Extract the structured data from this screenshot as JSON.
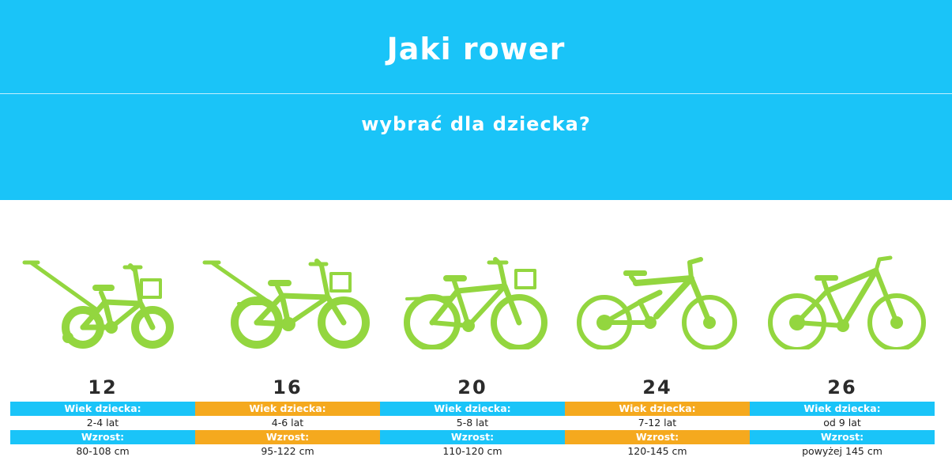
{
  "header": {
    "title": "Jaki rower",
    "subtitle": "wybrać dla dziecka?"
  },
  "colors": {
    "hero_bg": "#1ac4f8",
    "bike_green": "#93d63f",
    "label_blue": "#1ac4f8",
    "label_orange": "#f5a91e"
  },
  "bikes": [
    {
      "icon": "kids-bike-push-handle-icon",
      "size": "12",
      "age_label": "Wiek dziecka:",
      "age_value": "2-4 lat",
      "height_label": "Wzrost:",
      "height_value": "80-108 cm",
      "label_color": "#1ac4f8"
    },
    {
      "icon": "kids-bike-push-handle-rack-icon",
      "size": "16",
      "age_label": "Wiek dziecka:",
      "age_value": "4-6 lat",
      "height_label": "Wzrost:",
      "height_value": "95-122 cm",
      "label_color": "#f5a91e"
    },
    {
      "icon": "kids-bike-basket-icon",
      "size": "20",
      "age_label": "Wiek dziecka:",
      "age_value": "5-8 lat",
      "height_label": "Wzrost:",
      "height_value": "110-120 cm",
      "label_color": "#1ac4f8"
    },
    {
      "icon": "full-suspension-bike-icon",
      "size": "24",
      "age_label": "Wiek dziecka:",
      "age_value": "7-12 lat",
      "height_label": "Wzrost:",
      "height_value": "120-145 cm",
      "label_color": "#f5a91e"
    },
    {
      "icon": "girls-mountain-bike-icon",
      "size": "26",
      "age_label": "Wiek dziecka:",
      "age_value": "od 9 lat",
      "height_label": "Wzrost:",
      "height_value": "powyżej 145 cm",
      "label_color": "#1ac4f8"
    }
  ]
}
